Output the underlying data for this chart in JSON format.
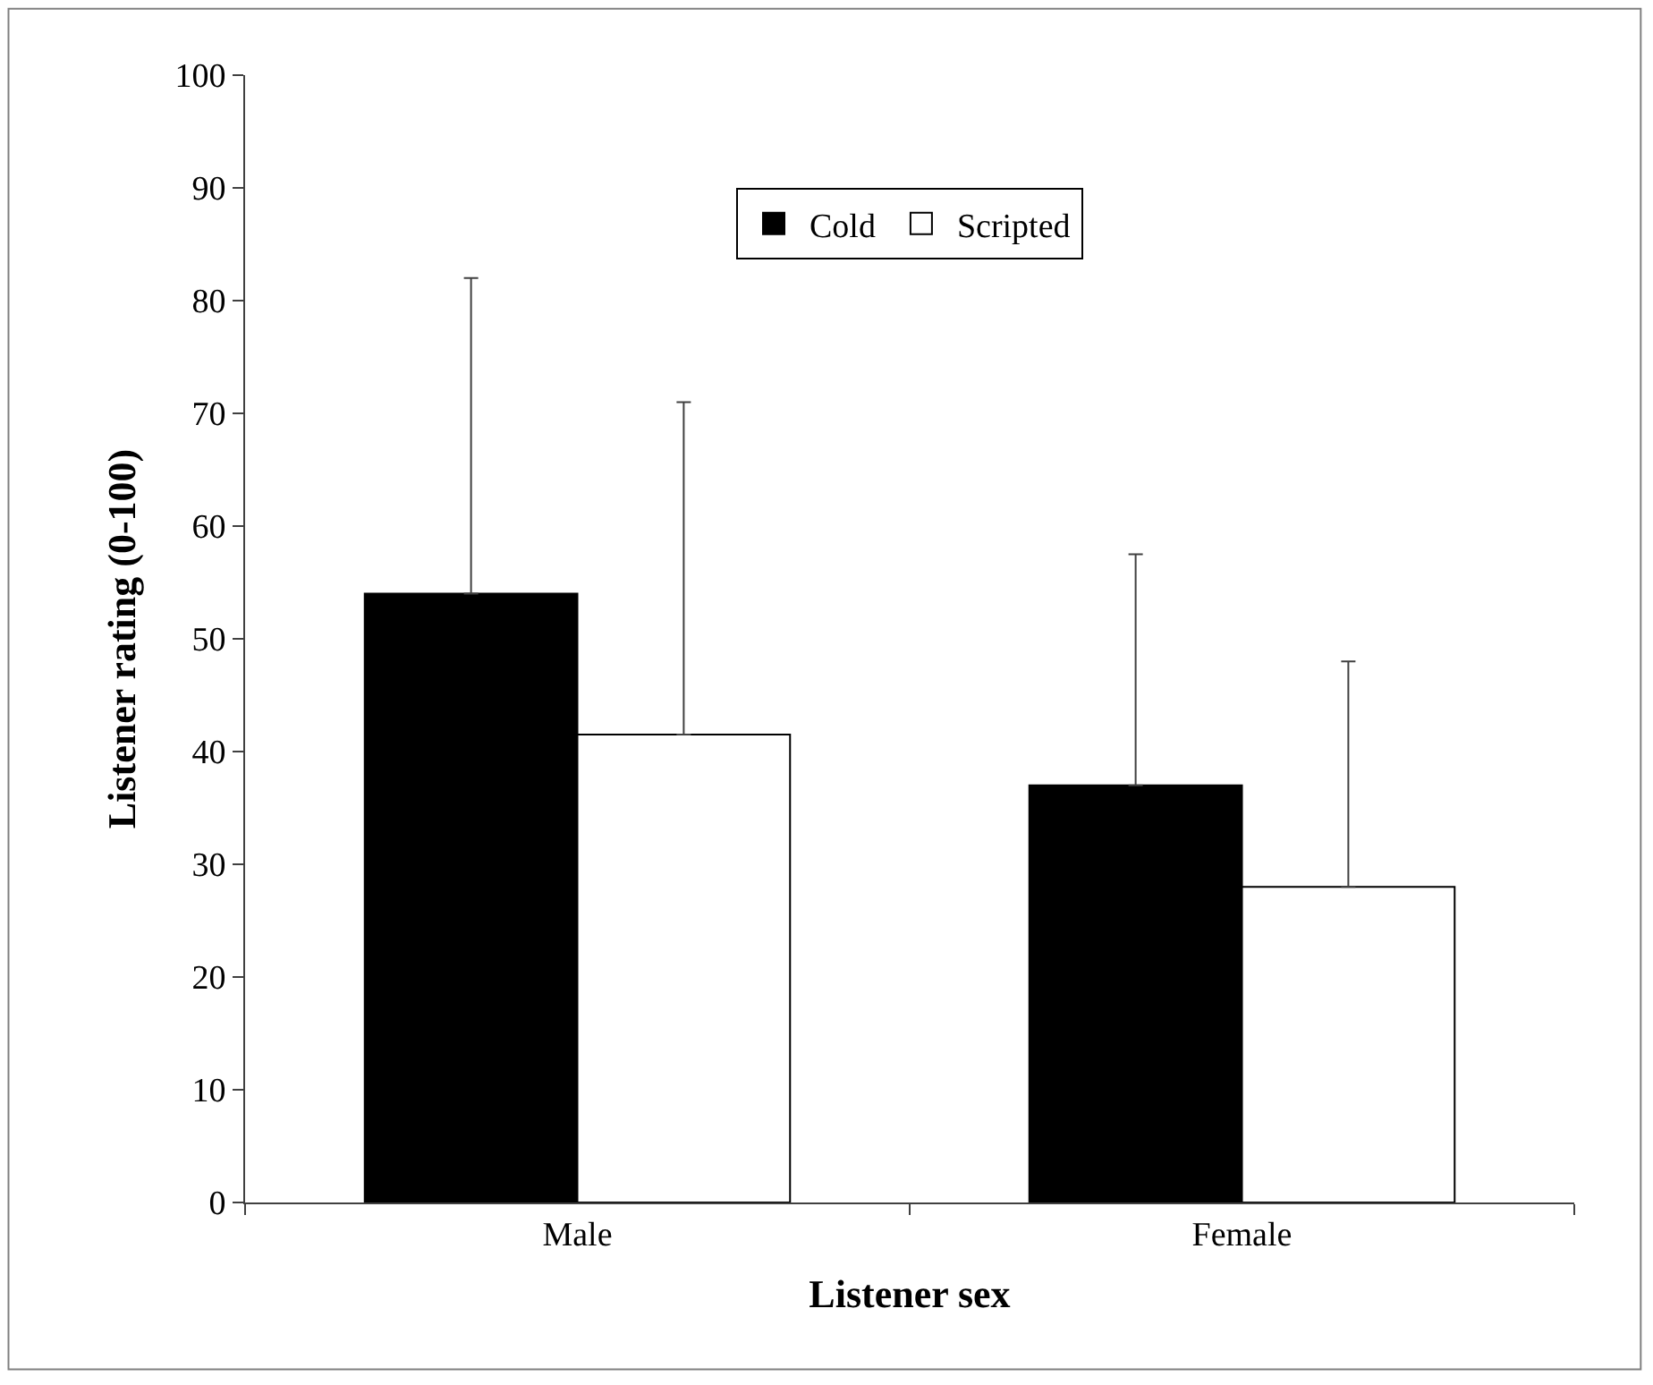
{
  "chart_data": {
    "type": "bar",
    "xlabel": "Listener sex",
    "ylabel": "Listener rating (0-100)",
    "categories": [
      "Male",
      "Female"
    ],
    "series": [
      {
        "name": "Cold",
        "color": "#000000",
        "values": [
          54,
          37
        ],
        "errors": [
          [
            54,
            82
          ],
          [
            37,
            57.5
          ]
        ]
      },
      {
        "name": "Scripted",
        "color": "#ffffff",
        "values": [
          41.5,
          28
        ],
        "errors": [
          [
            41.5,
            71
          ],
          [
            28,
            48
          ]
        ]
      }
    ],
    "ylim": [
      0,
      100
    ],
    "yticks": [
      0,
      10,
      20,
      30,
      40,
      50,
      60,
      70,
      80,
      90,
      100
    ],
    "legend": "top"
  }
}
